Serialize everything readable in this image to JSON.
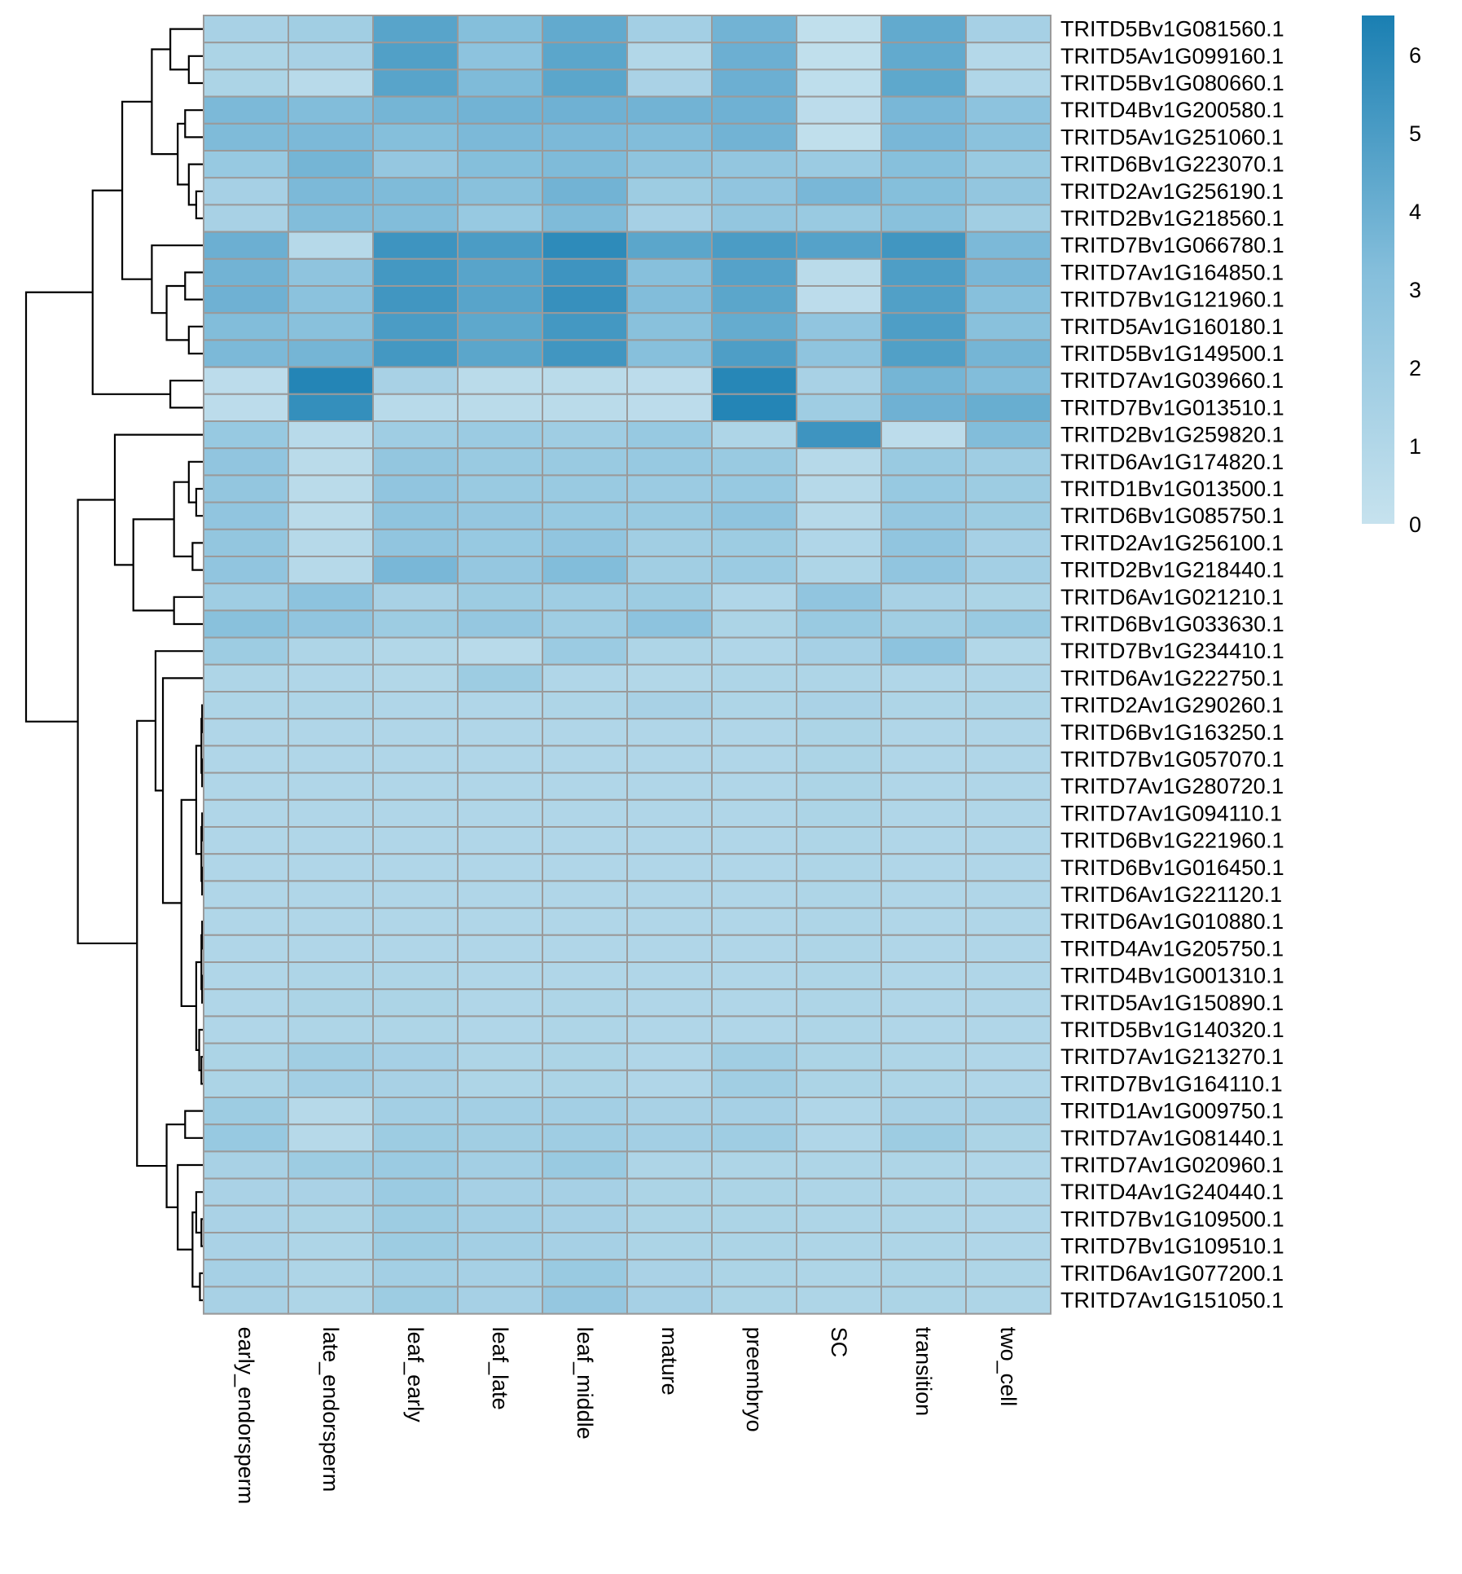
{
  "chart_data": {
    "type": "heatmap",
    "title": "",
    "xlabel": "",
    "ylabel": "",
    "columns": [
      "early_endorsperm",
      "late_endorsperm",
      "leaf_early",
      "leaf_late",
      "leaf_middle",
      "mature",
      "preembryo",
      "SC",
      "transition",
      "two_cell"
    ],
    "rows": [
      "TRITD5Bv1G081560.1",
      "TRITD5Av1G099160.1",
      "TRITD5Bv1G080660.1",
      "TRITD4Bv1G200580.1",
      "TRITD5Av1G251060.1",
      "TRITD6Bv1G223070.1",
      "TRITD2Av1G256190.1",
      "TRITD2Bv1G218560.1",
      "TRITD7Bv1G066780.1",
      "TRITD7Av1G164850.1",
      "TRITD7Bv1G121960.1",
      "TRITD5Av1G160180.1",
      "TRITD5Bv1G149500.1",
      "TRITD7Av1G039660.1",
      "TRITD7Bv1G013510.1",
      "TRITD2Bv1G259820.1",
      "TRITD6Av1G174820.1",
      "TRITD1Bv1G013500.1",
      "TRITD6Bv1G085750.1",
      "TRITD2Av1G256100.1",
      "TRITD2Bv1G218440.1",
      "TRITD6Av1G021210.1",
      "TRITD6Bv1G033630.1",
      "TRITD7Bv1G234410.1",
      "TRITD6Av1G222750.1",
      "TRITD2Av1G290260.1",
      "TRITD6Bv1G163250.1",
      "TRITD7Bv1G057070.1",
      "TRITD7Av1G280720.1",
      "TRITD7Av1G094110.1",
      "TRITD6Bv1G221960.1",
      "TRITD6Bv1G016450.1",
      "TRITD6Av1G221120.1",
      "TRITD6Av1G010880.1",
      "TRITD4Av1G205750.1",
      "TRITD4Bv1G001310.1",
      "TRITD5Av1G150890.1",
      "TRITD5Bv1G140320.1",
      "TRITD7Av1G213270.1",
      "TRITD7Bv1G164110.1",
      "TRITD1Av1G009750.1",
      "TRITD7Av1G081440.1",
      "TRITD7Av1G020960.1",
      "TRITD4Av1G240440.1",
      "TRITD7Bv1G109500.1",
      "TRITD7Bv1G109510.1",
      "TRITD6Av1G077200.1",
      "TRITD7Av1G151050.1"
    ],
    "values": [
      [
        1.5,
        1.8,
        4.6,
        3.2,
        4.3,
        1.7,
        3.8,
        0.3,
        4.3,
        1.6
      ],
      [
        1.3,
        1.5,
        4.8,
        2.8,
        4.5,
        1.0,
        4.0,
        0.3,
        4.3,
        0.9
      ],
      [
        1.3,
        0.7,
        4.6,
        3.4,
        4.5,
        1.4,
        4.0,
        0.4,
        4.4,
        1.1
      ],
      [
        3.5,
        3.3,
        3.7,
        3.8,
        3.9,
        3.8,
        3.9,
        0.5,
        3.6,
        2.8
      ],
      [
        3.4,
        3.5,
        3.2,
        3.5,
        3.5,
        3.3,
        3.8,
        0.3,
        3.6,
        2.9
      ],
      [
        2.3,
        3.7,
        2.4,
        3.2,
        3.4,
        2.7,
        2.5,
        2.1,
        3.1,
        2.2
      ],
      [
        1.6,
        3.5,
        3.4,
        3.0,
        3.8,
        2.0,
        2.6,
        3.6,
        3.2,
        2.5
      ],
      [
        1.5,
        3.3,
        3.3,
        2.3,
        3.4,
        1.6,
        2.5,
        2.2,
        3.0,
        1.8
      ],
      [
        4.0,
        0.8,
        5.4,
        5.0,
        5.9,
        4.5,
        5.0,
        4.7,
        5.3,
        3.5
      ],
      [
        3.8,
        2.7,
        5.2,
        4.6,
        5.4,
        3.1,
        4.7,
        0.6,
        4.9,
        3.6
      ],
      [
        3.9,
        2.9,
        5.3,
        4.6,
        5.6,
        3.3,
        4.5,
        0.5,
        4.8,
        3.1
      ],
      [
        3.3,
        3.0,
        5.0,
        4.4,
        5.2,
        3.0,
        4.2,
        2.6,
        4.9,
        3.0
      ],
      [
        3.5,
        3.7,
        5.2,
        4.5,
        5.3,
        3.1,
        4.9,
        2.7,
        4.8,
        3.7
      ],
      [
        0.5,
        6.2,
        1.5,
        0.6,
        0.6,
        0.5,
        6.1,
        1.5,
        3.7,
        3.3
      ],
      [
        0.5,
        5.7,
        0.7,
        0.6,
        0.6,
        0.5,
        6.2,
        1.9,
        3.9,
        4.1
      ],
      [
        2.3,
        0.7,
        1.9,
        2.1,
        1.9,
        2.3,
        1.2,
        5.4,
        0.5,
        3.3
      ],
      [
        2.6,
        0.6,
        2.5,
        2.2,
        2.2,
        2.3,
        2.2,
        0.8,
        2.2,
        1.9
      ],
      [
        2.5,
        0.6,
        2.6,
        2.2,
        2.2,
        2.1,
        2.3,
        0.8,
        2.3,
        2.0
      ],
      [
        2.6,
        0.6,
        2.7,
        2.4,
        2.3,
        2.2,
        2.7,
        0.8,
        2.4,
        2.0
      ],
      [
        2.5,
        0.8,
        2.6,
        2.3,
        2.6,
        1.8,
        2.0,
        1.1,
        2.6,
        1.6
      ],
      [
        2.6,
        0.8,
        3.6,
        2.4,
        3.3,
        1.8,
        2.1,
        1.2,
        2.6,
        1.7
      ],
      [
        1.9,
        2.8,
        1.5,
        2.0,
        1.9,
        2.0,
        1.1,
        2.6,
        1.5,
        1.3
      ],
      [
        3.0,
        2.6,
        2.0,
        2.4,
        1.9,
        2.8,
        1.3,
        2.2,
        1.8,
        2.2
      ],
      [
        2.0,
        1.2,
        1.0,
        0.7,
        2.1,
        1.2,
        1.1,
        1.6,
        2.8,
        1.0
      ],
      [
        1.2,
        1.1,
        1.0,
        2.0,
        1.1,
        1.0,
        1.2,
        1.2,
        1.1,
        1.1
      ],
      [
        1.2,
        1.2,
        1.1,
        1.1,
        1.2,
        1.5,
        1.2,
        1.4,
        1.2,
        1.2
      ],
      [
        1.1,
        1.1,
        1.1,
        1.1,
        1.1,
        1.1,
        1.1,
        1.3,
        1.1,
        1.1
      ],
      [
        1.1,
        1.1,
        1.1,
        1.1,
        1.1,
        1.1,
        1.1,
        1.3,
        1.1,
        1.1
      ],
      [
        1.1,
        1.1,
        1.1,
        1.1,
        1.1,
        1.1,
        1.1,
        1.3,
        1.1,
        1.1
      ],
      [
        1.1,
        1.1,
        1.1,
        1.1,
        1.1,
        1.1,
        1.1,
        1.3,
        1.1,
        1.1
      ],
      [
        1.1,
        1.1,
        1.1,
        1.1,
        1.1,
        1.1,
        1.1,
        1.2,
        1.1,
        1.1
      ],
      [
        1.1,
        1.1,
        1.1,
        1.1,
        1.1,
        1.1,
        1.1,
        1.2,
        1.1,
        1.1
      ],
      [
        1.1,
        1.1,
        1.1,
        1.1,
        1.1,
        1.1,
        1.1,
        1.2,
        1.1,
        1.1
      ],
      [
        1.1,
        1.1,
        1.1,
        1.1,
        1.1,
        1.1,
        1.1,
        1.2,
        1.1,
        1.1
      ],
      [
        1.1,
        1.1,
        1.1,
        1.1,
        1.1,
        1.1,
        1.1,
        1.2,
        1.1,
        1.1
      ],
      [
        1.1,
        1.2,
        1.2,
        1.1,
        1.1,
        1.1,
        1.1,
        1.2,
        1.1,
        1.1
      ],
      [
        1.1,
        1.3,
        1.3,
        1.1,
        1.2,
        1.1,
        1.1,
        1.2,
        1.1,
        1.1
      ],
      [
        1.1,
        1.2,
        1.2,
        1.1,
        1.2,
        1.1,
        1.1,
        1.2,
        1.1,
        1.1
      ],
      [
        1.3,
        1.8,
        1.6,
        1.2,
        1.3,
        1.1,
        1.8,
        1.3,
        1.2,
        1.1
      ],
      [
        1.3,
        1.7,
        1.5,
        1.2,
        1.3,
        1.1,
        1.8,
        1.3,
        1.2,
        1.1
      ],
      [
        2.0,
        0.8,
        1.7,
        1.7,
        1.7,
        1.5,
        1.6,
        1.1,
        1.5,
        1.5
      ],
      [
        2.3,
        0.8,
        2.0,
        1.8,
        1.9,
        1.7,
        1.9,
        1.1,
        2.0,
        1.3
      ],
      [
        1.5,
        2.0,
        2.1,
        1.7,
        2.2,
        1.2,
        1.2,
        1.2,
        1.2,
        1.1
      ],
      [
        1.4,
        1.4,
        2.1,
        1.6,
        1.6,
        1.3,
        1.3,
        1.2,
        1.2,
        1.1
      ],
      [
        1.4,
        1.3,
        2.0,
        1.7,
        1.6,
        1.3,
        1.3,
        1.2,
        1.2,
        1.1
      ],
      [
        1.4,
        1.2,
        2.0,
        1.7,
        1.6,
        1.3,
        1.3,
        1.2,
        1.2,
        1.1
      ],
      [
        1.6,
        1.2,
        1.7,
        1.6,
        2.2,
        1.4,
        1.3,
        1.2,
        1.3,
        1.2
      ],
      [
        1.5,
        1.2,
        2.0,
        1.6,
        2.4,
        1.6,
        1.3,
        1.2,
        1.3,
        1.2
      ]
    ],
    "color_scale": {
      "min": 0,
      "max": 6.5,
      "low_color": "#c6e2ee",
      "mid_color": "#84bedb",
      "high_color": "#1a7fb2",
      "cell_border_color": "#9a9a9a",
      "ticks": [
        0,
        1,
        2,
        3,
        4,
        5,
        6
      ]
    },
    "row_dendrogram": true,
    "column_dendrogram": false,
    "legend_position": "top-right"
  }
}
